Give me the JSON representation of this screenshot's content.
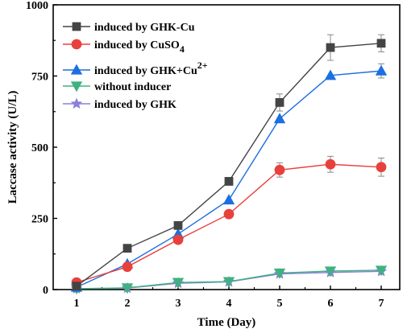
{
  "chart_data": {
    "type": "line",
    "xlabel": "Time (Day)",
    "ylabel": "Laccase activity (U/L)",
    "x": [
      1,
      2,
      3,
      4,
      5,
      6,
      7
    ],
    "xlim": [
      1,
      7
    ],
    "ylim": [
      0,
      1000
    ],
    "xticks": [
      "1",
      "2",
      "3",
      "4",
      "5",
      "6",
      "7"
    ],
    "yticks": [
      0,
      250,
      500,
      750,
      1000
    ],
    "grid": false,
    "legend_position": "top-left",
    "series": [
      {
        "name": "induced by GHK-Cu",
        "marker": "square",
        "color": "#444444",
        "values": [
          12,
          145,
          225,
          380,
          657,
          850,
          865
        ],
        "errors": [
          0,
          0,
          0,
          0,
          30,
          45,
          30
        ]
      },
      {
        "name": "induced by CuSO4",
        "marker": "circle",
        "color": "#e8413c",
        "values": [
          25,
          80,
          175,
          265,
          420,
          440,
          430
        ],
        "errors": [
          0,
          0,
          0,
          0,
          25,
          28,
          32
        ]
      },
      {
        "name": "induced by GHK+Cu2+",
        "marker": "triangle-up",
        "color": "#1b6fe0",
        "values": [
          8,
          90,
          195,
          315,
          600,
          752,
          768
        ],
        "errors": [
          0,
          0,
          0,
          0,
          0,
          0,
          25
        ]
      },
      {
        "name": "without inducer",
        "marker": "triangle-down",
        "color": "#3fb27f",
        "values": [
          3,
          6,
          25,
          28,
          58,
          65,
          68
        ],
        "errors": [
          0,
          0,
          0,
          0,
          0,
          0,
          0
        ]
      },
      {
        "name": "induced by GHK",
        "marker": "star",
        "color": "#8a7fd9",
        "values": [
          3,
          5,
          22,
          27,
          55,
          60,
          64
        ],
        "errors": [
          0,
          0,
          0,
          0,
          0,
          0,
          0
        ]
      }
    ]
  },
  "legend": [
    {
      "prefix": "induced by GHK-Cu",
      "sub": "",
      "sup": ""
    },
    {
      "prefix": "induced by CuSO",
      "sub": "4",
      "sup": ""
    },
    {
      "prefix": "induced by GHK+Cu",
      "sub": "",
      "sup": "2+"
    },
    {
      "prefix": "without inducer",
      "sub": "",
      "sup": ""
    },
    {
      "prefix": "induced by GHK",
      "sub": "",
      "sup": ""
    }
  ]
}
